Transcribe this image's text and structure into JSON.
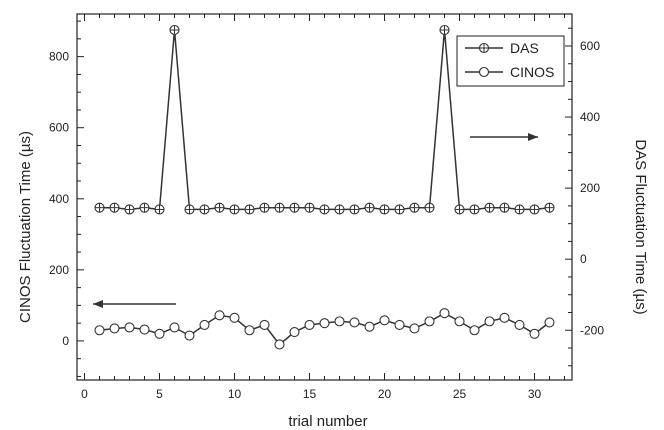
{
  "chart_data": {
    "type": "line",
    "xlabel": "trial number",
    "ylabel_left": "CINOS Fluctuation Time (µs)",
    "ylabel_right": "DAS Fluctuation Time (µs)",
    "xlim": [
      -0.5,
      32.5
    ],
    "ylim_left": [
      -110,
      920
    ],
    "ylim_right": [
      -340,
      690
    ],
    "x_ticks": [
      0,
      5,
      10,
      15,
      20,
      25,
      30
    ],
    "y_ticks_left": [
      0,
      200,
      400,
      600,
      800
    ],
    "y_ticks_right": [
      -200,
      0,
      200,
      400,
      600
    ],
    "grid": false,
    "legend_position": "top-right",
    "x": [
      1,
      2,
      3,
      4,
      5,
      6,
      7,
      8,
      9,
      10,
      11,
      12,
      13,
      14,
      15,
      16,
      17,
      18,
      19,
      20,
      21,
      22,
      23,
      24,
      25,
      26,
      27,
      28,
      29,
      30,
      31
    ],
    "series": [
      {
        "name": "DAS",
        "axis": "right",
        "marker": "circle-plus",
        "values": [
          145,
          145,
          140,
          145,
          140,
          645,
          140,
          140,
          145,
          140,
          140,
          145,
          145,
          145,
          145,
          140,
          140,
          140,
          145,
          140,
          140,
          145,
          145,
          645,
          140,
          140,
          145,
          145,
          140,
          140,
          145
        ]
      },
      {
        "name": "CINOS",
        "axis": "left",
        "marker": "circle",
        "values": [
          30,
          35,
          38,
          32,
          20,
          38,
          15,
          45,
          72,
          65,
          30,
          45,
          -10,
          25,
          45,
          50,
          55,
          52,
          40,
          58,
          45,
          35,
          55,
          78,
          55,
          30,
          55,
          65,
          45,
          20,
          52
        ]
      }
    ]
  },
  "colors": {
    "line": "#333333",
    "axis": "#222222",
    "marker_fill": "#ffffff",
    "arrow": "#333333"
  }
}
